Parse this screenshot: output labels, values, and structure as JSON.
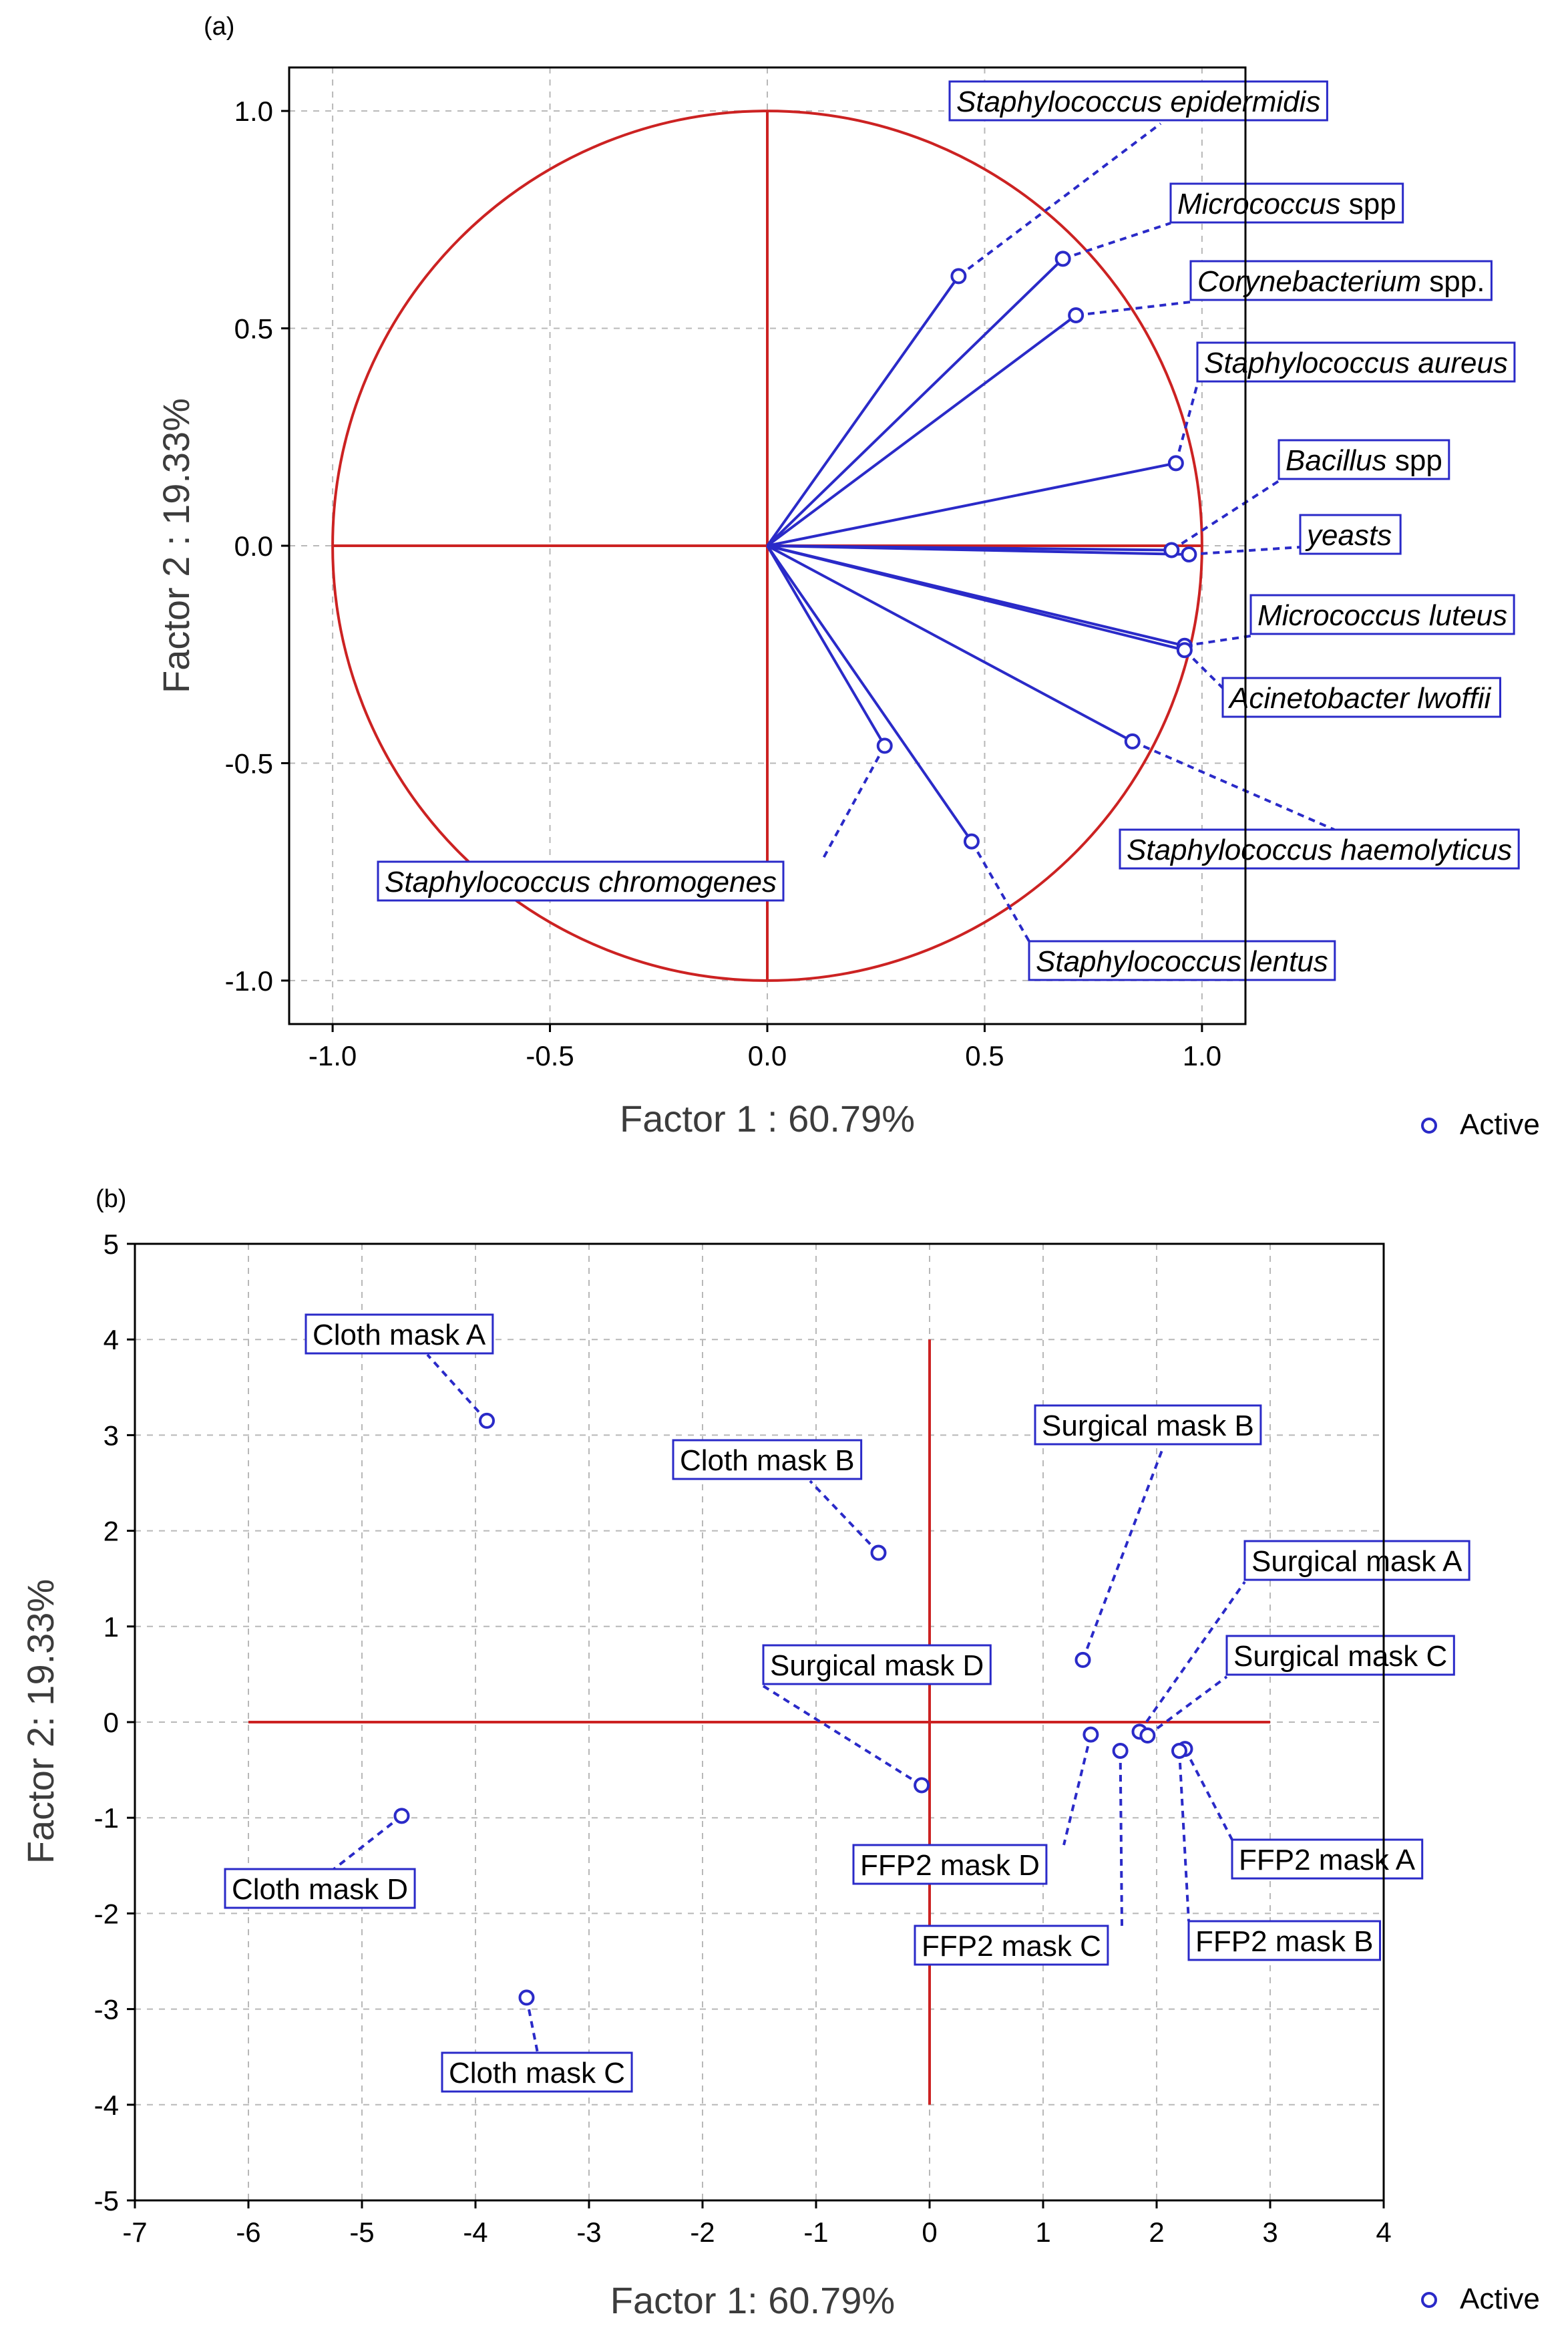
{
  "chart_data": [
    {
      "type": "scatter",
      "subtype": "correlation-circle",
      "panel_label": "(a)",
      "xlabel": "Factor 1 : 60.79%",
      "ylabel": "Factor 2 : 19.33%",
      "xlim": [
        -1.1,
        1.1
      ],
      "ylim": [
        -1.1,
        1.1
      ],
      "xticks": [
        -1.0,
        -0.5,
        0.0,
        0.5,
        1.0
      ],
      "yticks": [
        -1.0,
        -0.5,
        0.0,
        0.5,
        1.0
      ],
      "xtick_labels": [
        "-1.0",
        "-0.5",
        "0.0",
        "0.5",
        "1.0"
      ],
      "ytick_labels": [
        "-1.0",
        "-0.5",
        "0.0",
        "0.5",
        "1.0"
      ],
      "grid": true,
      "unit_circle": true,
      "legend": {
        "position": "bottom-right",
        "label": "Active"
      },
      "points": [
        {
          "name": "Staphylococcus epidermidis",
          "parts": [
            {
              "text": "Staphylococcus epidermidis",
              "italic": true
            }
          ],
          "x": 0.44,
          "y": 0.62
        },
        {
          "name": "Micrococcus spp",
          "parts": [
            {
              "text": "Micrococcus",
              "italic": true
            },
            {
              "text": " spp",
              "italic": false
            }
          ],
          "x": 0.68,
          "y": 0.66
        },
        {
          "name": "Corynebacterium spp.",
          "parts": [
            {
              "text": "Corynebacterium",
              "italic": true
            },
            {
              "text": " spp.",
              "italic": false
            }
          ],
          "x": 0.71,
          "y": 0.53
        },
        {
          "name": "Staphylococcus aureus",
          "parts": [
            {
              "text": "Staphylococcus aureus",
              "italic": true
            }
          ],
          "x": 0.94,
          "y": 0.19
        },
        {
          "name": "Bacillus spp",
          "parts": [
            {
              "text": "Bacillus",
              "italic": true
            },
            {
              "text": " spp",
              "italic": false
            }
          ],
          "x": 0.93,
          "y": -0.01
        },
        {
          "name": "yeasts",
          "parts": [
            {
              "text": "yeasts",
              "italic": true
            }
          ],
          "x": 0.97,
          "y": -0.02
        },
        {
          "name": "Micrococcus luteus",
          "parts": [
            {
              "text": "Micrococcus luteus",
              "italic": true
            }
          ],
          "x": 0.96,
          "y": -0.23
        },
        {
          "name": "Acinetobacter lwoffii",
          "parts": [
            {
              "text": "Acinetobacter lwoffii",
              "italic": true
            }
          ],
          "x": 0.96,
          "y": -0.24
        },
        {
          "name": "Staphylococcus haemolyticus",
          "parts": [
            {
              "text": "Staphylococcus haemolyticus",
              "italic": true
            }
          ],
          "x": 0.84,
          "y": -0.45
        },
        {
          "name": "Staphylococcus chromogenes",
          "parts": [
            {
              "text": "Staphylococcus chromogenes",
              "italic": true
            }
          ],
          "x": 0.27,
          "y": -0.46
        },
        {
          "name": "Staphylococcus lentus",
          "parts": [
            {
              "text": "Staphylococcus lentus",
              "italic": true
            }
          ],
          "x": 0.47,
          "y": -0.68
        }
      ]
    },
    {
      "type": "scatter",
      "panel_label": "(b)",
      "xlabel": "Factor 1: 60.79%",
      "ylabel": "Factor 2: 19.33%",
      "xlim": [
        -7,
        4
      ],
      "ylim": [
        -5,
        5
      ],
      "xticks": [
        -7,
        -6,
        -5,
        -4,
        -3,
        -2,
        -1,
        0,
        1,
        2,
        3,
        4
      ],
      "yticks": [
        -5,
        -4,
        -3,
        -2,
        -1,
        0,
        1,
        2,
        3,
        4,
        5
      ],
      "xtick_labels": [
        "-7",
        "-6",
        "-5",
        "-4",
        "-3",
        "-2",
        "-1",
        "0",
        "1",
        "2",
        "3",
        "4"
      ],
      "ytick_labels": [
        "-5",
        "-4",
        "-3",
        "-2",
        "-1",
        "0",
        "1",
        "2",
        "3",
        "4",
        "5"
      ],
      "grid": true,
      "reference_lines": {
        "horizontal": {
          "y": 0,
          "x_from": -6,
          "x_to": 3
        },
        "vertical": {
          "x": 0,
          "y_from": -4,
          "y_to": 4
        }
      },
      "legend": {
        "position": "bottom-right",
        "label": "Active"
      },
      "points": [
        {
          "name": "Cloth mask A",
          "parts": [
            {
              "text": "Cloth mask A",
              "italic": false
            }
          ],
          "x": -3.9,
          "y": 3.15
        },
        {
          "name": "Cloth mask B",
          "parts": [
            {
              "text": "Cloth mask B",
              "italic": false
            }
          ],
          "x": -0.45,
          "y": 1.77
        },
        {
          "name": "Cloth mask C",
          "parts": [
            {
              "text": "Cloth mask C",
              "italic": false
            }
          ],
          "x": -3.55,
          "y": -2.88
        },
        {
          "name": "Cloth mask D",
          "parts": [
            {
              "text": "Cloth mask D",
              "italic": false
            }
          ],
          "x": -4.65,
          "y": -0.98
        },
        {
          "name": "Surgical mask A",
          "parts": [
            {
              "text": "Surgical mask A",
              "italic": false
            }
          ],
          "x": 1.85,
          "y": -0.1
        },
        {
          "name": "Surgical mask B",
          "parts": [
            {
              "text": "Surgical mask B",
              "italic": false
            }
          ],
          "x": 1.35,
          "y": 0.65
        },
        {
          "name": "Surgical mask C",
          "parts": [
            {
              "text": "Surgical mask C",
              "italic": false
            }
          ],
          "x": 1.92,
          "y": -0.14
        },
        {
          "name": "Surgical mask D",
          "parts": [
            {
              "text": "Surgical mask D",
              "italic": false
            }
          ],
          "x": -0.07,
          "y": -0.66
        },
        {
          "name": "FFP2 mask A",
          "parts": [
            {
              "text": "FFP2 mask A",
              "italic": false
            }
          ],
          "x": 2.25,
          "y": -0.28
        },
        {
          "name": "FFP2 mask B",
          "parts": [
            {
              "text": "FFP2 mask B",
              "italic": false
            }
          ],
          "x": 2.2,
          "y": -0.3
        },
        {
          "name": "FFP2 mask C",
          "parts": [
            {
              "text": "FFP2 mask C",
              "italic": false
            }
          ],
          "x": 1.68,
          "y": -0.3
        },
        {
          "name": "FFP2 mask D",
          "parts": [
            {
              "text": "FFP2 mask D",
              "italic": false
            }
          ],
          "x": 1.42,
          "y": -0.13
        }
      ]
    }
  ]
}
